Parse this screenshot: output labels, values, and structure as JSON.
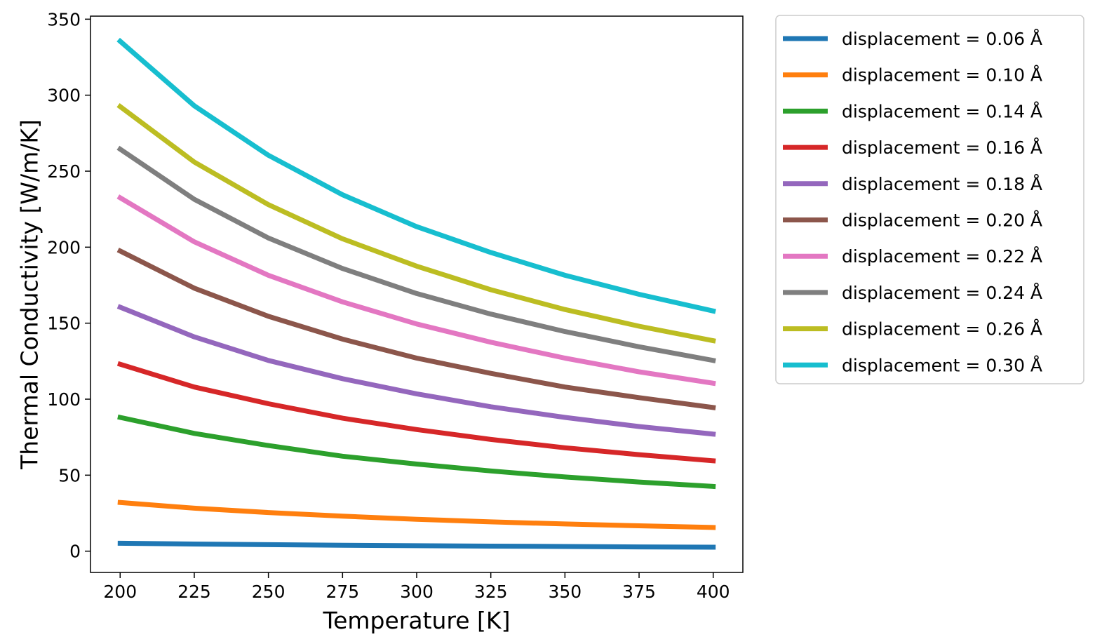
{
  "chart_data": {
    "type": "line",
    "title": "",
    "xlabel": "Temperature [K]",
    "ylabel": "Thermal Conductivity [W/m/K]",
    "xlim": [
      190,
      410
    ],
    "ylim": [
      -14,
      352
    ],
    "xticks": [
      200,
      225,
      250,
      275,
      300,
      325,
      350,
      375,
      400
    ],
    "yticks": [
      0,
      50,
      100,
      150,
      200,
      250,
      300,
      350
    ],
    "grid": false,
    "legend_position": "outside-upper-right",
    "x": [
      200,
      225,
      250,
      275,
      300,
      325,
      350,
      375,
      400
    ],
    "series": [
      {
        "name": "displacement = 0.06 Å",
        "color": "#1f77b4",
        "values": [
          5.2,
          4.7,
          4.3,
          3.9,
          3.6,
          3.3,
          3.1,
          2.8,
          2.6
        ]
      },
      {
        "name": "displacement = 0.10 Å",
        "color": "#ff7f0e",
        "values": [
          32.0,
          28.3,
          25.4,
          23.0,
          21.0,
          19.3,
          17.9,
          16.7,
          15.6
        ]
      },
      {
        "name": "displacement = 0.14 Å",
        "color": "#2ca02c",
        "values": [
          88.0,
          77.5,
          69.5,
          62.5,
          57.3,
          52.8,
          48.8,
          45.5,
          42.6
        ]
      },
      {
        "name": "displacement = 0.16 Å",
        "color": "#d62728",
        "values": [
          123.0,
          108.0,
          97.0,
          87.5,
          80.0,
          73.5,
          68.0,
          63.5,
          59.5
        ]
      },
      {
        "name": "displacement = 0.18 Å",
        "color": "#9467bd",
        "values": [
          160.5,
          141.0,
          125.5,
          113.5,
          103.5,
          95.0,
          88.0,
          82.0,
          77.0
        ]
      },
      {
        "name": "displacement = 0.20 Å",
        "color": "#8c564b",
        "values": [
          197.5,
          173.0,
          154.5,
          139.5,
          127.0,
          117.0,
          108.0,
          101.0,
          94.5
        ]
      },
      {
        "name": "displacement = 0.22 Å",
        "color": "#e377c2",
        "values": [
          232.5,
          203.5,
          181.5,
          164.0,
          149.5,
          137.5,
          127.0,
          118.0,
          110.5
        ]
      },
      {
        "name": "displacement = 0.24 Å",
        "color": "#7f7f7f",
        "values": [
          264.5,
          231.5,
          206.0,
          186.0,
          169.5,
          156.0,
          144.5,
          134.5,
          125.5
        ]
      },
      {
        "name": "displacement = 0.26 Å",
        "color": "#bcbd22",
        "values": [
          292.5,
          256.0,
          228.0,
          205.5,
          187.5,
          172.0,
          159.0,
          148.0,
          138.5
        ]
      },
      {
        "name": "displacement = 0.30 Å",
        "color": "#17becf",
        "values": [
          335.5,
          293.0,
          260.5,
          234.5,
          213.5,
          196.5,
          181.5,
          169.0,
          158.0
        ]
      }
    ]
  }
}
